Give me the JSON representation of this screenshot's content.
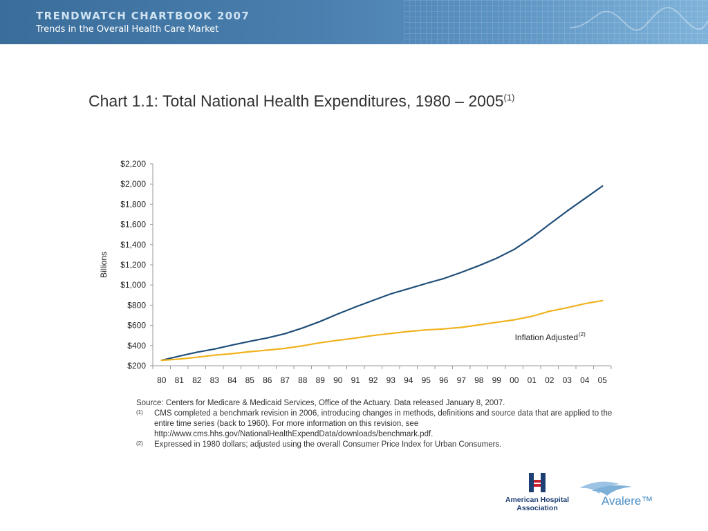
{
  "header": {
    "title": "TRENDWATCH CHARTBOOK 2007",
    "subtitle": "Trends in the Overall Health Care Market"
  },
  "chart_title": {
    "text": "Chart 1.1: Total National Health Expenditures, 1980 – 2005",
    "footnote_mark": "(1)"
  },
  "chart_data": {
    "type": "line",
    "ylabel": "Billions",
    "ylim": [
      200,
      2200
    ],
    "yticks": [
      200,
      400,
      600,
      800,
      1000,
      1200,
      1400,
      1600,
      1800,
      2000,
      2200
    ],
    "ytick_labels": [
      "$200",
      "$400",
      "$600",
      "$800",
      "$1,000",
      "$1,200",
      "$1,400",
      "$1,600",
      "$1,800",
      "$2,000",
      "$2,200"
    ],
    "categories": [
      "80",
      "81",
      "82",
      "83",
      "84",
      "85",
      "86",
      "87",
      "88",
      "89",
      "90",
      "91",
      "92",
      "93",
      "94",
      "95",
      "96",
      "97",
      "98",
      "99",
      "00",
      "01",
      "02",
      "03",
      "04",
      "05"
    ],
    "grid": false,
    "series": [
      {
        "color": "#1f4e79",
        "values": [
          254,
          295,
          334,
          366,
          405,
          442,
          476,
          518,
          575,
          640,
          714,
          783,
          848,
          912,
          963,
          1015,
          1064,
          1125,
          1192,
          1265,
          1353,
          1470,
          1603,
          1733,
          1856,
          1980
        ]
      },
      {
        "name": "Inflation Adjusted",
        "label_mark": "(2)",
        "color": "#f0b21c",
        "values": [
          254,
          266,
          284,
          305,
          320,
          340,
          355,
          372,
          398,
          428,
          452,
          475,
          500,
          520,
          540,
          555,
          565,
          580,
          605,
          630,
          655,
          690,
          740,
          775,
          815,
          845
        ]
      }
    ]
  },
  "notes": {
    "source": "Source: Centers for Medicare & Medicaid Services, Office of the Actuary.  Data released January 8, 2007.",
    "items": [
      {
        "mark": "(1)",
        "text": "CMS completed a benchmark revision in 2006, introducing changes in methods, definitions and source data that are applied to the entire time series (back to 1960).  For more information on this revision, see http://www.cms.hhs.gov/NationalHealthExpendData/downloads/benchmark.pdf."
      },
      {
        "mark": "(2)",
        "text": "Expressed in 1980 dollars; adjusted using the overall Consumer Price Index for Urban Consumers."
      }
    ]
  },
  "logos": {
    "aha": "American Hospital Association",
    "avalere": "Avalere™",
    "colors": {
      "aha_red": "#c8202f",
      "aha_blue": "#1d3f73",
      "avalere_blue": "#4c8fc4"
    }
  }
}
